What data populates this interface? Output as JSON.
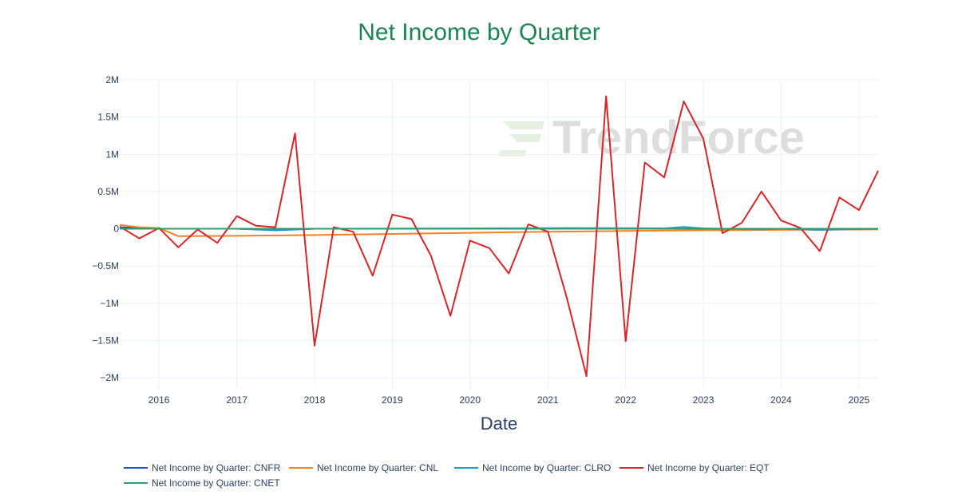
{
  "chart_data": {
    "type": "line",
    "title": "Net Income by Quarter",
    "title_color": "#1e8455",
    "xlabel": "Date",
    "ylabel": "",
    "watermark": "TrendForce",
    "x_ticks": [
      "2016",
      "2017",
      "2018",
      "2019",
      "2020",
      "2021",
      "2022",
      "2023",
      "2024",
      "2025"
    ],
    "x_range": [
      "2015-07-01",
      "2025-04-01"
    ],
    "y_ticks": [
      {
        "value": 2000000,
        "label": "2M"
      },
      {
        "value": 1500000,
        "label": "1.5M"
      },
      {
        "value": 1000000,
        "label": "1M"
      },
      {
        "value": 500000,
        "label": "0.5M"
      },
      {
        "value": 0,
        "label": "0"
      },
      {
        "value": -500000,
        "label": "−0.5M"
      },
      {
        "value": -1000000,
        "label": "−1M"
      },
      {
        "value": -1500000,
        "label": "−1.5M"
      },
      {
        "value": -2000000,
        "label": "−2M"
      }
    ],
    "ylim": [
      -2150000,
      2000000
    ],
    "grid": true,
    "legend_position": "bottom",
    "series": [
      {
        "name": "Net Income by Quarter: CNFR",
        "color": "#1f55d0",
        "points": [
          [
            "2015-07-01",
            20000
          ],
          [
            "2016-01-01",
            0
          ],
          [
            "2017-01-01",
            0
          ],
          [
            "2017-07-01",
            -20000
          ],
          [
            "2018-01-01",
            0
          ],
          [
            "2019-01-01",
            0
          ],
          [
            "2020-01-01",
            0
          ],
          [
            "2021-01-01",
            0
          ],
          [
            "2022-01-01",
            0
          ],
          [
            "2023-01-01",
            0
          ],
          [
            "2024-01-01",
            0
          ],
          [
            "2024-07-01",
            -15000
          ],
          [
            "2025-04-01",
            0
          ]
        ]
      },
      {
        "name": "Net Income by Quarter: CNL",
        "color": "#f58220",
        "points": [
          [
            "2015-07-01",
            50000
          ],
          [
            "2015-10-01",
            20000
          ],
          [
            "2016-01-01",
            10000
          ],
          [
            "2016-04-01",
            -100000
          ],
          [
            "2017-01-01",
            -95000
          ],
          [
            "2018-01-01",
            -85000
          ],
          [
            "2019-01-01",
            -70000
          ],
          [
            "2020-01-01",
            -55000
          ],
          [
            "2021-01-01",
            -40000
          ],
          [
            "2022-01-01",
            -30000
          ],
          [
            "2023-01-01",
            -20000
          ],
          [
            "2024-01-01",
            -15000
          ],
          [
            "2025-04-01",
            -10000
          ]
        ]
      },
      {
        "name": "Net Income by Quarter: CLRO",
        "color": "#1a9fd0",
        "points": [
          [
            "2015-07-01",
            0
          ],
          [
            "2017-01-01",
            0
          ],
          [
            "2017-07-01",
            -15000
          ],
          [
            "2018-01-01",
            0
          ],
          [
            "2020-07-01",
            5000
          ],
          [
            "2021-04-01",
            10000
          ],
          [
            "2022-07-01",
            5000
          ],
          [
            "2022-10-01",
            25000
          ],
          [
            "2023-01-01",
            5000
          ],
          [
            "2023-10-01",
            -10000
          ],
          [
            "2024-01-01",
            0
          ],
          [
            "2024-07-01",
            -15000
          ],
          [
            "2025-04-01",
            0
          ]
        ]
      },
      {
        "name": "Net Income by Quarter: EQT",
        "color": "#d62728",
        "points": [
          [
            "2015-07-01",
            30000
          ],
          [
            "2015-10-01",
            -130000
          ],
          [
            "2016-01-01",
            10000
          ],
          [
            "2016-04-01",
            -250000
          ],
          [
            "2016-07-01",
            -10000
          ],
          [
            "2016-10-01",
            -190000
          ],
          [
            "2017-01-01",
            170000
          ],
          [
            "2017-04-01",
            40000
          ],
          [
            "2017-07-01",
            20000
          ],
          [
            "2017-10-01",
            1280000
          ],
          [
            "2018-01-01",
            -1570000
          ],
          [
            "2018-04-01",
            20000
          ],
          [
            "2018-07-01",
            -40000
          ],
          [
            "2018-10-01",
            -630000
          ],
          [
            "2019-01-01",
            190000
          ],
          [
            "2019-04-01",
            130000
          ],
          [
            "2019-07-01",
            -360000
          ],
          [
            "2019-10-01",
            -1170000
          ],
          [
            "2020-01-01",
            -160000
          ],
          [
            "2020-04-01",
            -260000
          ],
          [
            "2020-07-01",
            -600000
          ],
          [
            "2020-10-01",
            60000
          ],
          [
            "2021-01-01",
            -40000
          ],
          [
            "2021-04-01",
            -940000
          ],
          [
            "2021-07-01",
            -1980000
          ],
          [
            "2021-10-01",
            1780000
          ],
          [
            "2022-01-01",
            -1510000
          ],
          [
            "2022-04-01",
            890000
          ],
          [
            "2022-07-01",
            690000
          ],
          [
            "2022-10-01",
            1710000
          ],
          [
            "2023-01-01",
            1210000
          ],
          [
            "2023-04-01",
            -60000
          ],
          [
            "2023-07-01",
            80000
          ],
          [
            "2023-10-01",
            500000
          ],
          [
            "2024-01-01",
            110000
          ],
          [
            "2024-04-01",
            10000
          ],
          [
            "2024-07-01",
            -300000
          ],
          [
            "2024-10-01",
            420000
          ],
          [
            "2025-01-01",
            250000
          ],
          [
            "2025-04-01",
            780000
          ]
        ]
      },
      {
        "name": "Net Income by Quarter: CNET",
        "color": "#2ca068",
        "points": [
          [
            "2015-07-01",
            0
          ],
          [
            "2016-01-01",
            0
          ],
          [
            "2017-01-01",
            0
          ],
          [
            "2018-01-01",
            0
          ],
          [
            "2019-01-01",
            0
          ],
          [
            "2020-01-01",
            0
          ],
          [
            "2021-01-01",
            0
          ],
          [
            "2022-01-01",
            0
          ],
          [
            "2023-01-01",
            0
          ],
          [
            "2024-01-01",
            0
          ],
          [
            "2025-04-01",
            0
          ]
        ]
      }
    ]
  }
}
